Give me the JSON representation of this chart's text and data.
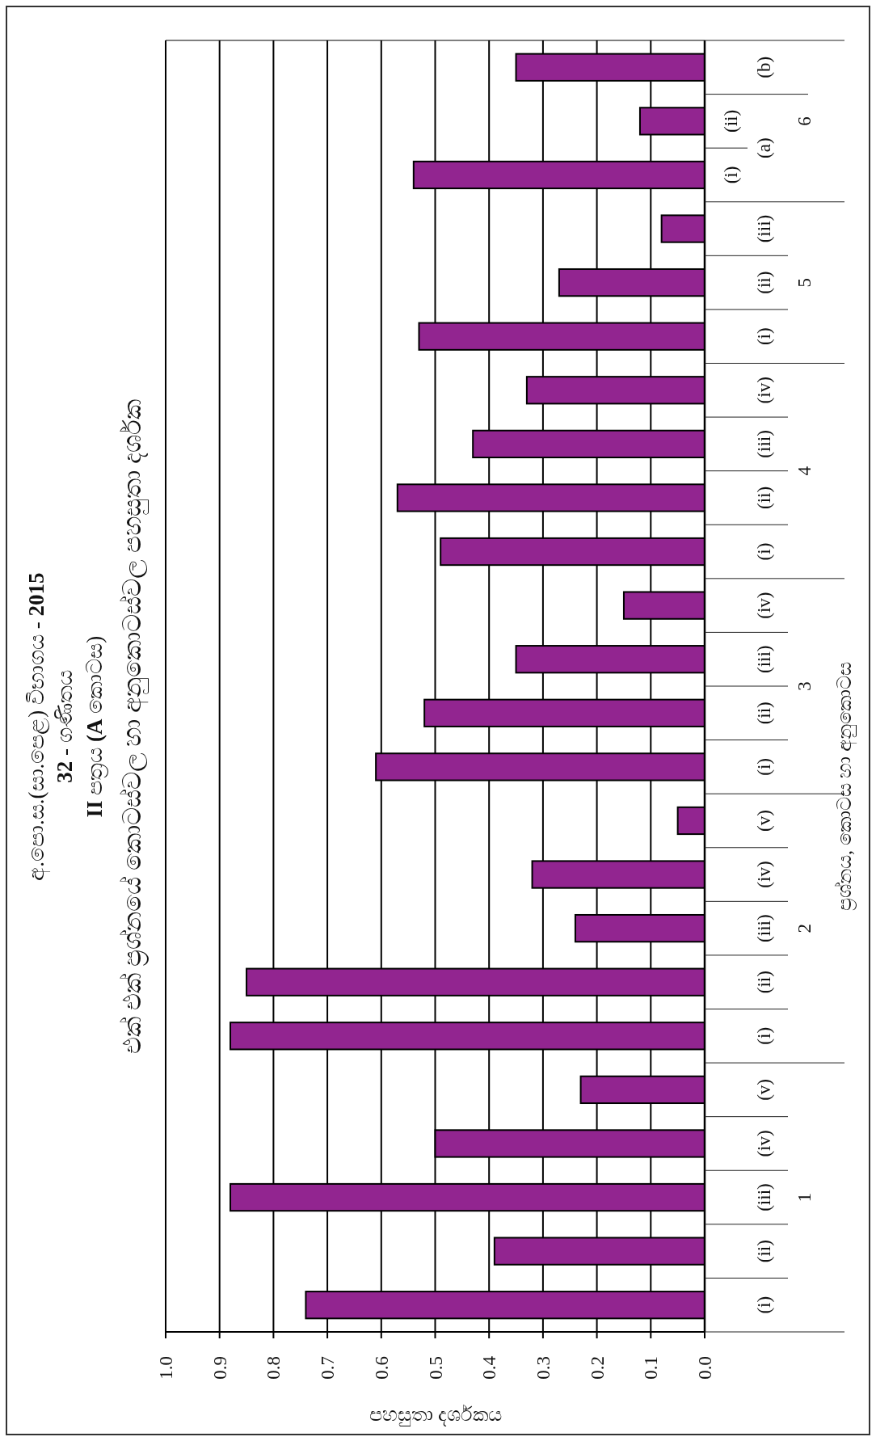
{
  "chart_data": {
    "type": "bar",
    "orientation": "horizontal",
    "title": "අ.පො.ස.(සා.පෙළ) විභාගය - **2015**\n**32** - ගණිතය\n**II** පත්‍රය **(A** කොටස)",
    "subtitle": "එක් එක් ප්‍රශ්නයේ කොටස්වල හා අනුකොටස්වල පහසුතා දර්ශක",
    "xlabel": "පහසුතා දර්ශකය",
    "ylabel": "ප්‍රශ්නය, කොටස හා අනුකොටස",
    "categories": [
      "(b)",
      "(ii)",
      "(i)",
      "(iii)",
      "(ii)",
      "(i)",
      "(iv)",
      "(iii)",
      "(ii)",
      "(i)",
      "(iv)",
      "(iii)",
      "(ii)",
      "(i)",
      "(v)",
      "(iv)",
      "(iii)",
      "(ii)",
      "(i)",
      "(v)",
      "(iv)",
      "(iii)",
      "(ii)",
      "(i)"
    ],
    "values": [
      0.35,
      0.12,
      0.54,
      0.08,
      0.27,
      0.53,
      0.33,
      0.43,
      0.57,
      0.49,
      0.15,
      0.35,
      0.52,
      0.61,
      0.05,
      0.32,
      0.24,
      0.85,
      0.88,
      0.23,
      0.5,
      0.88,
      0.39,
      0.74
    ],
    "color": "#922590",
    "annotations": [
      "6",
      "(a)",
      "5",
      "4",
      "3",
      "2",
      "1"
    ],
    "xlim": [
      1,
      0
    ],
    "xticks": [
      {
        "value": 1,
        "label": "1.0"
      },
      {
        "value": 0.9,
        "label": "0.9"
      },
      {
        "value": 0.8,
        "label": "0.8"
      },
      {
        "value": 0.7,
        "label": "0.7"
      },
      {
        "value": 0.6,
        "label": "0.6"
      },
      {
        "value": 0.5,
        "label": "0.5"
      },
      {
        "value": 0.4,
        "label": "0.4"
      },
      {
        "value": 0.3,
        "label": "0.3"
      },
      {
        "value": 0.2,
        "label": "0.2"
      },
      {
        "value": 0.1,
        "label": "0.1"
      },
      {
        "value": 0,
        "label": "0.0"
      }
    ],
    "grid": "x"
  }
}
